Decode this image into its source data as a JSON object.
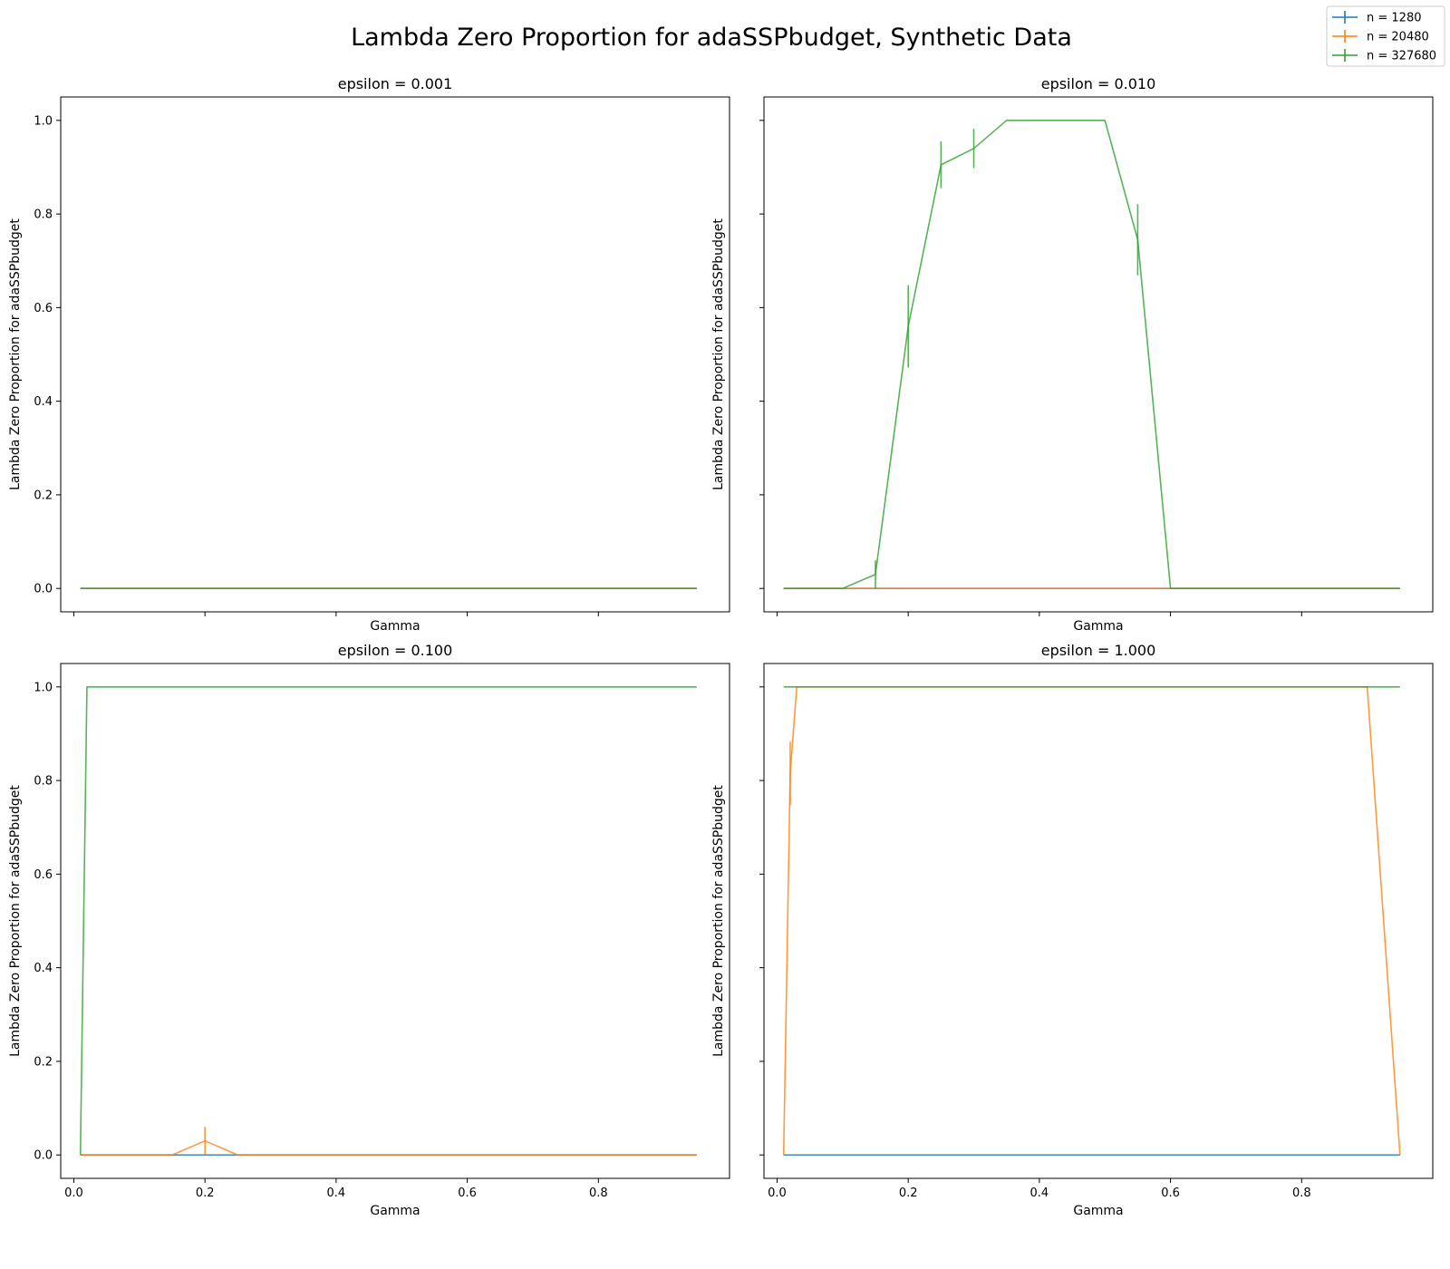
{
  "chart_data": {
    "type": "line",
    "title": "Lambda Zero Proportion for adaSSPbudget,  Synthetic Data",
    "xlabel": "Gamma",
    "ylabel": "Lambda Zero Proportion for adaSSPbudget",
    "xlim": [
      -0.02,
      1.0
    ],
    "ylim": [
      -0.05,
      1.05
    ],
    "xticks": [
      0.0,
      0.2,
      0.4,
      0.6,
      0.8
    ],
    "xtick_labels": [
      "0.0",
      "0.2",
      "0.4",
      "0.6",
      "0.8"
    ],
    "yticks": [
      0.0,
      0.2,
      0.4,
      0.6,
      0.8,
      1.0
    ],
    "ytick_labels": [
      "0.0",
      "0.2",
      "0.4",
      "0.6",
      "0.8",
      "1.0"
    ],
    "grid": false,
    "legend_position": "top-right",
    "legend": [
      {
        "label": "n = 1280",
        "color": "#1f77b4"
      },
      {
        "label": "n = 20480",
        "color": "#ff7f0e"
      },
      {
        "label": "n = 327680",
        "color": "#2ca02c"
      }
    ],
    "x": [
      0.01,
      0.02,
      0.03,
      0.05,
      0.1,
      0.15,
      0.2,
      0.25,
      0.3,
      0.35,
      0.4,
      0.45,
      0.5,
      0.55,
      0.6,
      0.65,
      0.7,
      0.75,
      0.8,
      0.85,
      0.9,
      0.95
    ],
    "panels": [
      {
        "title": "epsilon = 0.001",
        "show_xticklabels": false,
        "show_yticklabels": true,
        "series": [
          {
            "name": "n = 1280",
            "values": [
              0,
              0,
              0,
              0,
              0,
              0,
              0,
              0,
              0,
              0,
              0,
              0,
              0,
              0,
              0,
              0,
              0,
              0,
              0,
              0,
              0,
              0
            ],
            "errors": [
              0,
              0,
              0,
              0,
              0,
              0,
              0,
              0,
              0,
              0,
              0,
              0,
              0,
              0,
              0,
              0,
              0,
              0,
              0,
              0,
              0,
              0
            ]
          },
          {
            "name": "n = 20480",
            "values": [
              0,
              0,
              0,
              0,
              0,
              0,
              0,
              0,
              0,
              0,
              0,
              0,
              0,
              0,
              0,
              0,
              0,
              0,
              0,
              0,
              0,
              0
            ],
            "errors": [
              0,
              0,
              0,
              0,
              0,
              0,
              0,
              0,
              0,
              0,
              0,
              0,
              0,
              0,
              0,
              0,
              0,
              0,
              0,
              0,
              0,
              0
            ]
          },
          {
            "name": "n = 327680",
            "values": [
              0,
              0,
              0,
              0,
              0,
              0,
              0,
              0,
              0,
              0,
              0,
              0,
              0,
              0,
              0,
              0,
              0,
              0,
              0,
              0,
              0,
              0
            ],
            "errors": [
              0,
              0,
              0,
              0,
              0,
              0,
              0,
              0,
              0,
              0,
              0,
              0,
              0,
              0,
              0,
              0,
              0,
              0,
              0,
              0,
              0,
              0
            ]
          }
        ]
      },
      {
        "title": "epsilon = 0.010",
        "show_xticklabels": false,
        "show_yticklabels": false,
        "series": [
          {
            "name": "n = 1280",
            "values": [
              0,
              0,
              0,
              0,
              0,
              0,
              0,
              0,
              0,
              0,
              0,
              0,
              0,
              0,
              0,
              0,
              0,
              0,
              0,
              0,
              0,
              0
            ],
            "errors": [
              0,
              0,
              0,
              0,
              0,
              0,
              0,
              0,
              0,
              0,
              0,
              0,
              0,
              0,
              0,
              0,
              0,
              0,
              0,
              0,
              0,
              0
            ]
          },
          {
            "name": "n = 20480",
            "values": [
              0,
              0,
              0,
              0,
              0,
              0,
              0,
              0,
              0,
              0,
              0,
              0,
              0,
              0,
              0,
              0,
              0,
              0,
              0,
              0,
              0,
              0
            ],
            "errors": [
              0,
              0,
              0,
              0,
              0,
              0,
              0,
              0,
              0,
              0,
              0,
              0,
              0,
              0,
              0,
              0,
              0,
              0,
              0,
              0,
              0,
              0
            ]
          },
          {
            "name": "n = 327680",
            "values": [
              0,
              0,
              0,
              0,
              0,
              0.03,
              0.56,
              0.905,
              0.94,
              1.0,
              1.0,
              1.0,
              1.0,
              0.745,
              0,
              0,
              0,
              0,
              0,
              0,
              0,
              0
            ],
            "errors": [
              0,
              0,
              0,
              0,
              0,
              0.03,
              0.088,
              0.05,
              0.042,
              0,
              0,
              0,
              0,
              0.076,
              0,
              0,
              0,
              0,
              0,
              0,
              0,
              0
            ]
          }
        ]
      },
      {
        "title": "epsilon = 0.100",
        "show_xticklabels": true,
        "show_yticklabels": true,
        "series": [
          {
            "name": "n = 1280",
            "values": [
              0,
              0,
              0,
              0,
              0,
              0,
              0,
              0,
              0,
              0,
              0,
              0,
              0,
              0,
              0,
              0,
              0,
              0,
              0,
              0,
              0,
              0
            ],
            "errors": [
              0,
              0,
              0,
              0,
              0,
              0,
              0,
              0,
              0,
              0,
              0,
              0,
              0,
              0,
              0,
              0,
              0,
              0,
              0,
              0,
              0,
              0
            ]
          },
          {
            "name": "n = 20480",
            "values": [
              0,
              0,
              0,
              0,
              0,
              0,
              0.03,
              0,
              0,
              0,
              0,
              0,
              0,
              0,
              0,
              0,
              0,
              0,
              0,
              0,
              0,
              0
            ],
            "errors": [
              0,
              0,
              0,
              0,
              0,
              0,
              0.03,
              0,
              0,
              0,
              0,
              0,
              0,
              0,
              0,
              0,
              0,
              0,
              0,
              0,
              0,
              0
            ]
          },
          {
            "name": "n = 327680",
            "values": [
              0,
              1,
              1,
              1,
              1,
              1,
              1,
              1,
              1,
              1,
              1,
              1,
              1,
              1,
              1,
              1,
              1,
              1,
              1,
              1,
              1,
              1
            ],
            "errors": [
              0,
              0,
              0,
              0,
              0,
              0,
              0,
              0,
              0,
              0,
              0,
              0,
              0,
              0,
              0,
              0,
              0,
              0,
              0,
              0,
              0,
              0
            ]
          }
        ]
      },
      {
        "title": "epsilon = 1.000",
        "show_xticklabels": true,
        "show_yticklabels": false,
        "series": [
          {
            "name": "n = 1280",
            "values": [
              0,
              0,
              0,
              0,
              0,
              0,
              0,
              0,
              0,
              0,
              0,
              0,
              0,
              0,
              0,
              0,
              0,
              0,
              0,
              0,
              0,
              0
            ],
            "errors": [
              0,
              0,
              0,
              0,
              0,
              0,
              0,
              0,
              0,
              0,
              0,
              0,
              0,
              0,
              0,
              0,
              0,
              0,
              0,
              0,
              0,
              0
            ]
          },
          {
            "name": "n = 20480",
            "values": [
              0,
              0.815,
              1,
              1,
              1,
              1,
              1,
              1,
              1,
              1,
              1,
              1,
              1,
              1,
              1,
              1,
              1,
              1,
              1,
              1,
              1,
              0
            ],
            "errors": [
              0,
              0.068,
              0,
              0,
              0,
              0,
              0,
              0,
              0,
              0,
              0,
              0,
              0,
              0,
              0,
              0,
              0,
              0,
              0,
              0,
              0,
              0
            ]
          },
          {
            "name": "n = 327680",
            "values": [
              1,
              1,
              1,
              1,
              1,
              1,
              1,
              1,
              1,
              1,
              1,
              1,
              1,
              1,
              1,
              1,
              1,
              1,
              1,
              1,
              1,
              1
            ],
            "errors": [
              0,
              0,
              0,
              0,
              0,
              0,
              0,
              0,
              0,
              0,
              0,
              0,
              0,
              0,
              0,
              0,
              0,
              0,
              0,
              0,
              0,
              0
            ]
          }
        ]
      }
    ]
  }
}
